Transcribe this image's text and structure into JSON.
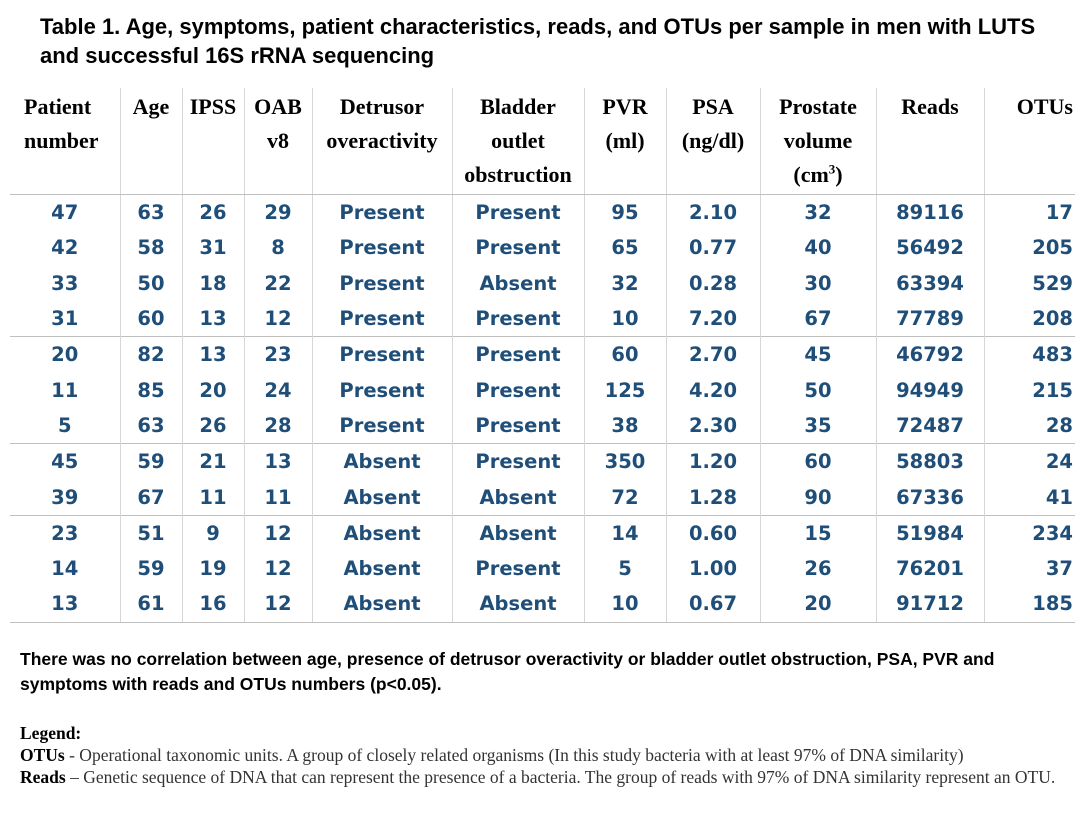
{
  "title": "Table 1. Age, symptoms, patient characteristics, reads, and OTUs per sample in men with LUTS and successful 16S rRNA sequencing",
  "headers": [
    [
      "Patient",
      "number"
    ],
    [
      "Age"
    ],
    [
      "IPSS"
    ],
    [
      "OAB",
      "v8"
    ],
    [
      "Detrusor",
      "overactivity"
    ],
    [
      "Bladder",
      "outlet",
      "obstruction"
    ],
    [
      "PVR",
      "(ml)"
    ],
    [
      "PSA",
      "(ng/dl)"
    ],
    [
      "Prostate",
      "volume",
      "(cm"
    ],
    [
      "Reads"
    ],
    [
      "OTUs"
    ]
  ],
  "header_superscript": "3",
  "header_close": ")",
  "rows": [
    [
      "47",
      "63",
      "26",
      "29",
      "Present",
      "Present",
      "95",
      "2.10",
      "32",
      "89116",
      "17"
    ],
    [
      "42",
      "58",
      "31",
      "8",
      "Present",
      "Present",
      "65",
      "0.77",
      "40",
      "56492",
      "205"
    ],
    [
      "33",
      "50",
      "18",
      "22",
      "Present",
      "Absent",
      "32",
      "0.28",
      "30",
      "63394",
      "529"
    ],
    [
      "31",
      "60",
      "13",
      "12",
      "Present",
      "Present",
      "10",
      "7.20",
      "67",
      "77789",
      "208"
    ],
    [
      "20",
      "82",
      "13",
      "23",
      "Present",
      "Present",
      "60",
      "2.70",
      "45",
      "46792",
      "483"
    ],
    [
      "11",
      "85",
      "20",
      "24",
      "Present",
      "Present",
      "125",
      "4.20",
      "50",
      "94949",
      "215"
    ],
    [
      "5",
      "63",
      "26",
      "28",
      "Present",
      "Present",
      "38",
      "2.30",
      "35",
      "72487",
      "28"
    ],
    [
      "45",
      "59",
      "21",
      "13",
      "Absent",
      "Present",
      "350",
      "1.20",
      "60",
      "58803",
      "24"
    ],
    [
      "39",
      "67",
      "11",
      "11",
      "Absent",
      "Absent",
      "72",
      "1.28",
      "90",
      "67336",
      "41"
    ],
    [
      "23",
      "51",
      "9",
      "12",
      "Absent",
      "Absent",
      "14",
      "0.60",
      "15",
      "51984",
      "234"
    ],
    [
      "14",
      "59",
      "19",
      "12",
      "Absent",
      "Present",
      "5",
      "1.00",
      "26",
      "76201",
      "37"
    ],
    [
      "13",
      "61",
      "16",
      "12",
      "Absent",
      "Absent",
      "10",
      "0.67",
      "20",
      "91712",
      "185"
    ]
  ],
  "note": "There was no correlation between age, presence of detrusor overactivity or bladder outlet obstruction, PSA, PVR and symptoms with reads and OTUs numbers (p<0.05).",
  "legend": {
    "title": "Legend:",
    "otus_term": "OTUs",
    "otus_text": " - Operational taxonomic units. A group of closely related organisms (In this study bacteria with at least 97% of DNA similarity)",
    "reads_term": "Reads",
    "reads_text": " – Genetic sequence of DNA that can represent the presence of a bacteria. The group of reads with 97% of DNA similarity represent an OTU."
  }
}
